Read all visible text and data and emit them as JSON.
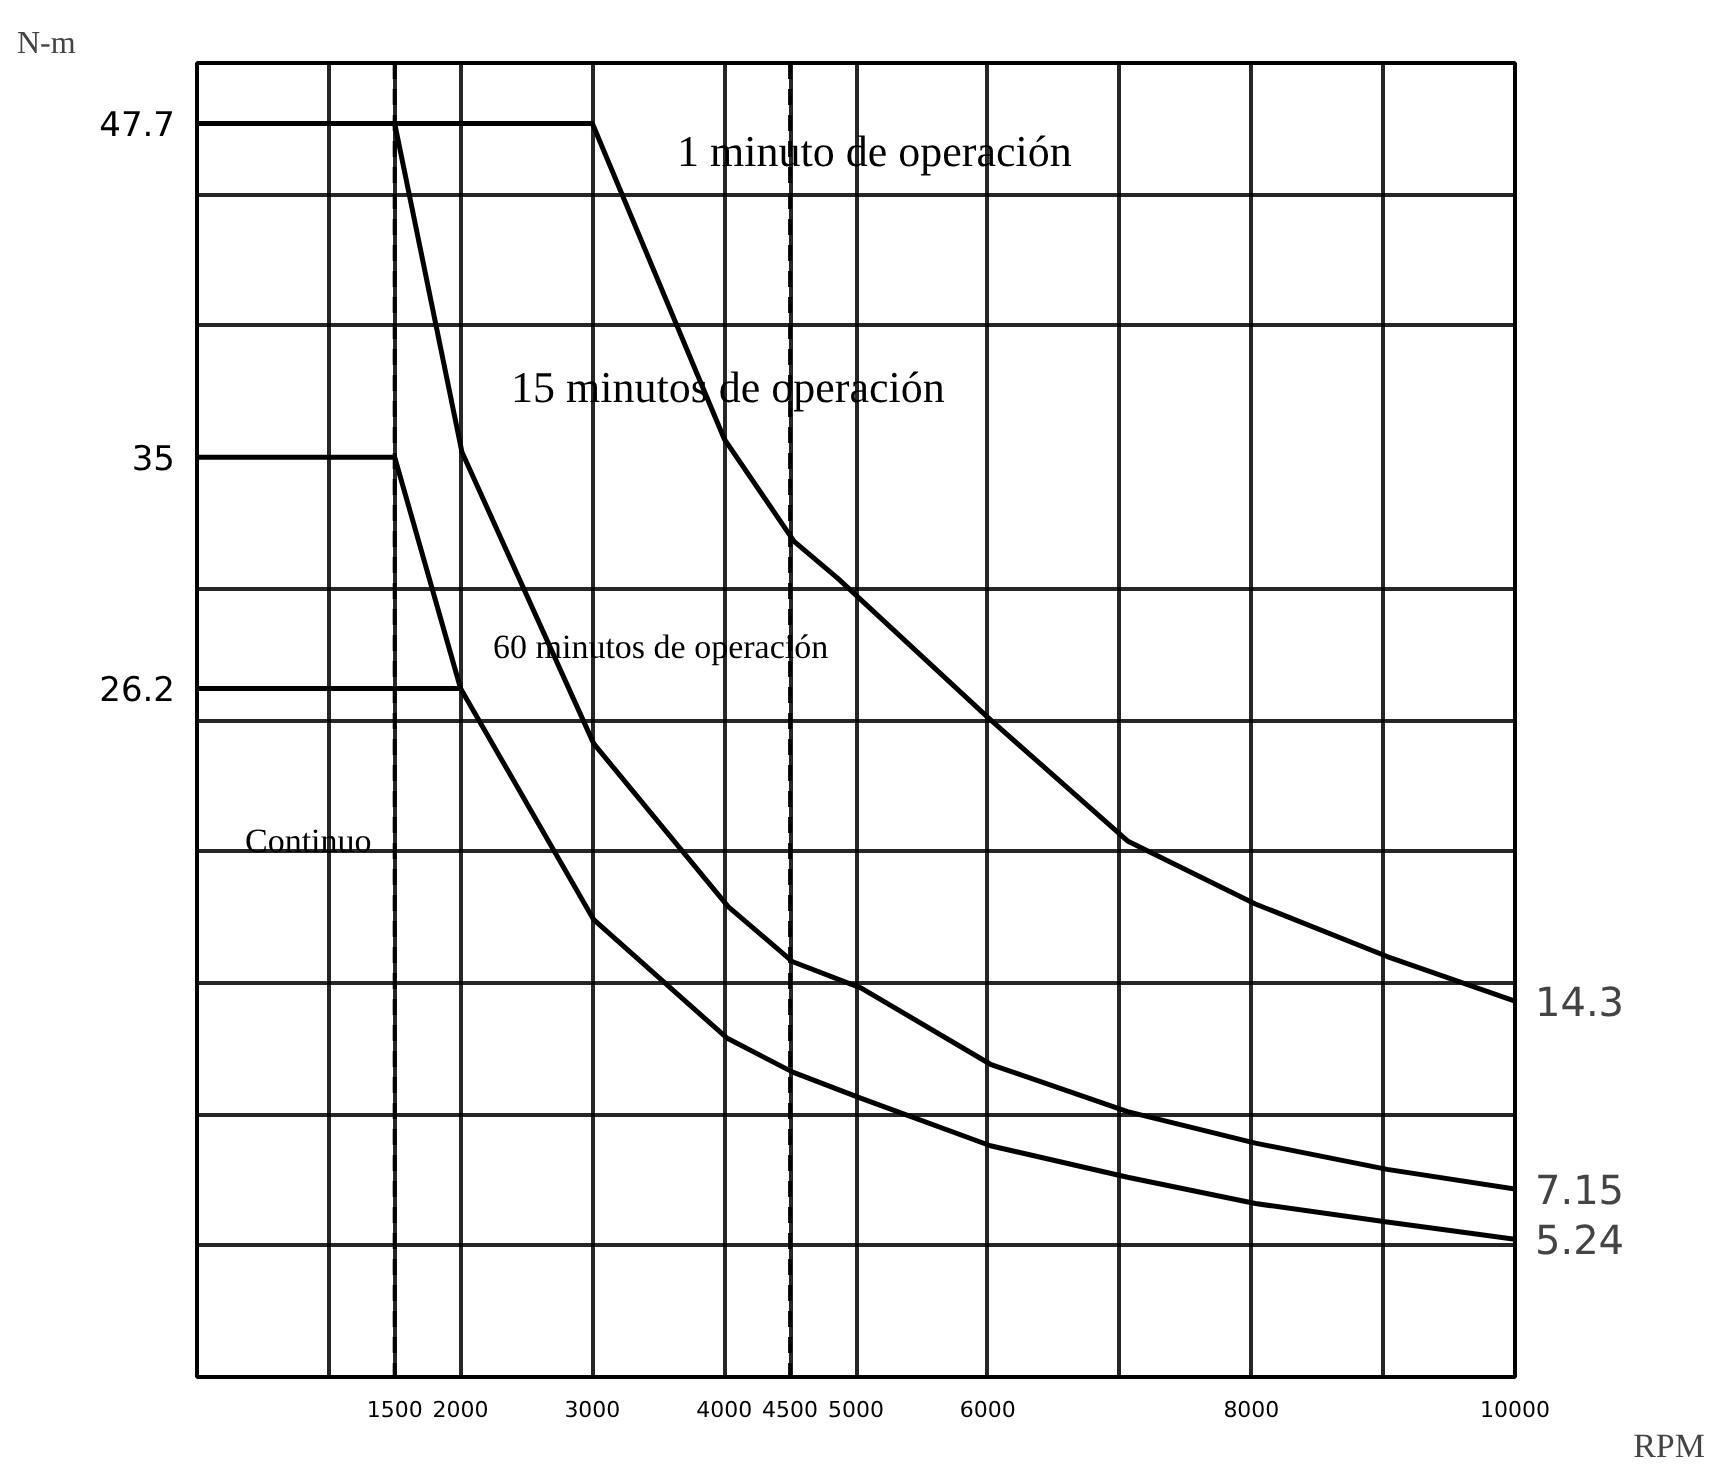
{
  "chart_data": {
    "type": "line",
    "xlabel": "RPM",
    "ylabel": "N-m",
    "xlim": [
      0,
      10000
    ],
    "ylim": [
      0,
      50
    ],
    "xticks": [
      {
        "value": 1000,
        "label": null
      },
      1500,
      2000,
      3000,
      4000,
      4500,
      5000,
      6000,
      {
        "value": 7000,
        "label": null
      },
      8000,
      {
        "value": 9000,
        "label": null
      },
      10000
    ],
    "yticks": [
      {
        "value": 5,
        "label": null
      },
      {
        "value": 10,
        "label": null
      },
      {
        "value": 15,
        "label": null
      },
      {
        "value": 20,
        "label": null
      },
      {
        "value": 25,
        "label": null
      },
      {
        "value": 26.2,
        "label": "26.2"
      },
      {
        "value": 30,
        "label": null
      },
      {
        "value": 35,
        "label": "35"
      },
      {
        "value": 40,
        "label": null
      },
      {
        "value": 45,
        "label": null
      },
      {
        "value": 47.7,
        "label": "47.7"
      },
      {
        "value": 50,
        "label": null
      }
    ],
    "grid": true,
    "marker": "none",
    "line_style": "solid",
    "series": [
      {
        "color": "#000000",
        "x": [
          0,
          3000,
          4000,
          4530,
          4860,
          6000,
          7060,
          8030,
          9030,
          10000
        ],
        "values": [
          47.7,
          47.7,
          35.7,
          31.8,
          30.4,
          25.1,
          20.4,
          18.0,
          16.0,
          14.3
        ],
        "value_labels": [
          null,
          null,
          null,
          null,
          null,
          null,
          null,
          null,
          null,
          "14.3"
        ]
      },
      {
        "color": "#000000",
        "x": [
          1500,
          2010,
          3010,
          4030,
          4520,
          5040,
          6020,
          7060,
          8030,
          9030,
          10000
        ],
        "values": [
          47.7,
          35.2,
          24.1,
          17.9,
          15.8,
          14.8,
          11.9,
          10.1,
          8.9,
          7.9,
          7.15
        ],
        "value_labels": [
          null,
          null,
          null,
          null,
          null,
          null,
          null,
          null,
          null,
          null,
          "7.15"
        ]
      },
      {
        "color": "#000000",
        "x": [
          0,
          1500,
          2000,
          3010,
          4020,
          4520,
          5040,
          6020,
          7060,
          8030,
          9030,
          10000
        ],
        "values": [
          35,
          35,
          26.2,
          17.4,
          12.9,
          11.6,
          10.6,
          8.8,
          7.6,
          6.6,
          5.9,
          5.24
        ],
        "value_labels": [
          null,
          null,
          null,
          null,
          null,
          null,
          null,
          null,
          null,
          null,
          null,
          "5.24"
        ]
      },
      {
        "color": "#000000",
        "x": [
          0,
          2000
        ],
        "values": [
          26.2,
          26.2
        ]
      }
    ],
    "ref_lines": [
      {
        "axis": "x",
        "value": 1500,
        "line_style": "dashed",
        "color": "#000000"
      },
      {
        "axis": "x",
        "value": 4500,
        "line_style": "dashed",
        "color": "#000000"
      }
    ],
    "annotations": [
      "1 minuto de operación",
      "15 minutos de operación",
      "60 minutos de operación",
      "Continuo"
    ]
  }
}
